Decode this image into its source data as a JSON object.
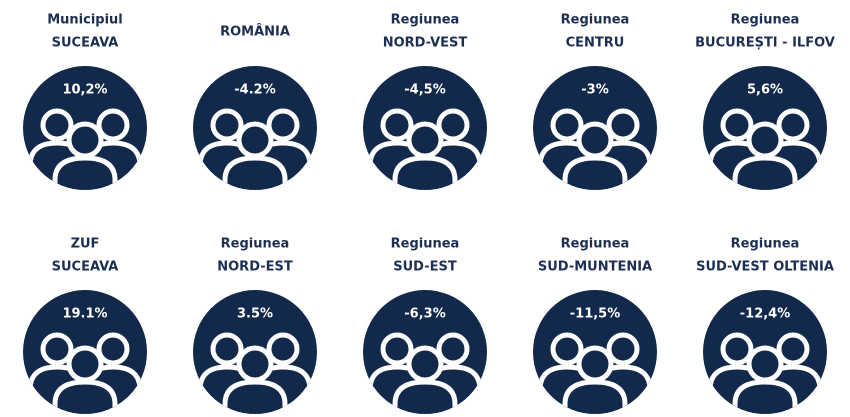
{
  "items": [
    {
      "label": [
        "Municipiul",
        "SUCEAVA"
      ],
      "value": "10,2%"
    },
    {
      "label": [
        "ROMÂNIA"
      ],
      "value": "-4.2%"
    },
    {
      "label": [
        "Regiunea",
        "NORD-VEST"
      ],
      "value": "-4,5%"
    },
    {
      "label": [
        "Regiunea",
        "CENTRU"
      ],
      "value": "-3%"
    },
    {
      "label": [
        "Regiunea",
        "BUCUREȘTI - ILFOV"
      ],
      "value": "5,6%"
    },
    {
      "label": [
        "ZUF",
        "SUCEAVA"
      ],
      "value": "19.1%"
    },
    {
      "label": [
        "Regiunea",
        "NORD-EST"
      ],
      "value": "3.5%"
    },
    {
      "label": [
        "Regiunea",
        "SUD-EST"
      ],
      "value": "-6,3%"
    },
    {
      "label": [
        "Regiunea",
        "SUD-MUNTENIA"
      ],
      "value": "-11,5%"
    },
    {
      "label": [
        "Regiunea",
        "SUD-VEST OLTENIA"
      ],
      "value": "-12,4%"
    }
  ]
}
